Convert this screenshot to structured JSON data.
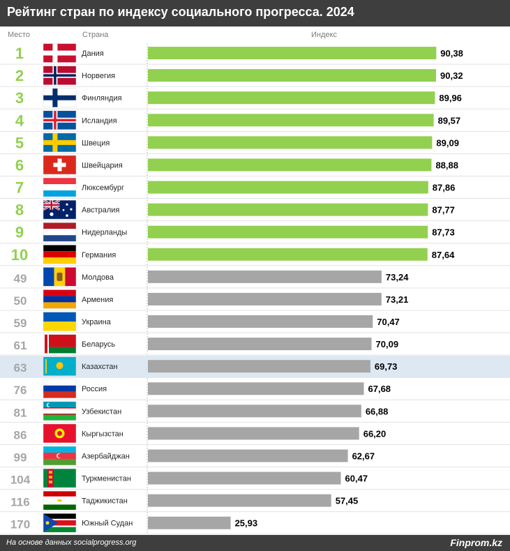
{
  "header": {
    "title": "Рейтинг стран по индексу социального прогресса. 2024"
  },
  "columns": {
    "rank": "Место",
    "country": "Страна",
    "index": "Индекс"
  },
  "footer": {
    "source": "На основе данных socialprogress.org",
    "brand": "Finprom.kz"
  },
  "colors": {
    "top_bar": "#92d050",
    "other_bar": "#a6a6a6",
    "top_rank": "#92d050",
    "other_rank": "#a6a6a6",
    "highlight_row": "#dde8f3",
    "header_bg": "#3e3e3e"
  },
  "chart_data": {
    "type": "bar",
    "orientation": "horizontal",
    "highlight": "Казахстан",
    "rows": [
      {
        "rank": "1",
        "country": "Дания",
        "value": 90.38,
        "label": "90,38",
        "flag": "denmark",
        "top": true
      },
      {
        "rank": "2",
        "country": "Норвегия",
        "value": 90.32,
        "label": "90,32",
        "flag": "norway",
        "top": true
      },
      {
        "rank": "3",
        "country": "Финляндия",
        "value": 89.96,
        "label": "89,96",
        "flag": "finland",
        "top": true
      },
      {
        "rank": "4",
        "country": "Исландия",
        "value": 89.57,
        "label": "89,57",
        "flag": "iceland",
        "top": true
      },
      {
        "rank": "5",
        "country": "Швеция",
        "value": 89.09,
        "label": "89,09",
        "flag": "sweden",
        "top": true
      },
      {
        "rank": "6",
        "country": "Швейцария",
        "value": 88.88,
        "label": "88,88",
        "flag": "switzerland",
        "top": true
      },
      {
        "rank": "7",
        "country": "Люксембург",
        "value": 87.86,
        "label": "87,86",
        "flag": "luxembourg",
        "top": true
      },
      {
        "rank": "8",
        "country": "Австралия",
        "value": 87.77,
        "label": "87,77",
        "flag": "australia",
        "top": true
      },
      {
        "rank": "9",
        "country": "Нидерланды",
        "value": 87.73,
        "label": "87,73",
        "flag": "netherlands",
        "top": true
      },
      {
        "rank": "10",
        "country": "Германия",
        "value": 87.64,
        "label": "87,64",
        "flag": "germany",
        "top": true
      },
      {
        "rank": "49",
        "country": "Молдова",
        "value": 73.24,
        "label": "73,24",
        "flag": "moldova",
        "top": false
      },
      {
        "rank": "50",
        "country": "Армения",
        "value": 73.21,
        "label": "73,21",
        "flag": "armenia",
        "top": false
      },
      {
        "rank": "59",
        "country": "Украина",
        "value": 70.47,
        "label": "70,47",
        "flag": "ukraine",
        "top": false
      },
      {
        "rank": "61",
        "country": "Беларусь",
        "value": 70.09,
        "label": "70,09",
        "flag": "belarus",
        "top": false
      },
      {
        "rank": "63",
        "country": "Казахстан",
        "value": 69.73,
        "label": "69,73",
        "flag": "kazakhstan",
        "top": false
      },
      {
        "rank": "76",
        "country": "Россия",
        "value": 67.68,
        "label": "67,68",
        "flag": "russia",
        "top": false
      },
      {
        "rank": "81",
        "country": "Узбекистан",
        "value": 66.88,
        "label": "66,88",
        "flag": "uzbekistan",
        "top": false
      },
      {
        "rank": "86",
        "country": "Кыргызстан",
        "value": 66.2,
        "label": "66,20",
        "flag": "kyrgyzstan",
        "top": false
      },
      {
        "rank": "99",
        "country": "Азербайджан",
        "value": 62.67,
        "label": "62,67",
        "flag": "azerbaijan",
        "top": false
      },
      {
        "rank": "104",
        "country": "Туркменистан",
        "value": 60.47,
        "label": "60,47",
        "flag": "turkmenistan",
        "top": false
      },
      {
        "rank": "116",
        "country": "Таджикистан",
        "value": 57.45,
        "label": "57,45",
        "flag": "tajikistan",
        "top": false
      },
      {
        "rank": "170",
        "country": "Южный Судан",
        "value": 25.93,
        "label": "25,93",
        "flag": "south-sudan",
        "top": false
      }
    ],
    "xlim": [
      0,
      100
    ]
  }
}
